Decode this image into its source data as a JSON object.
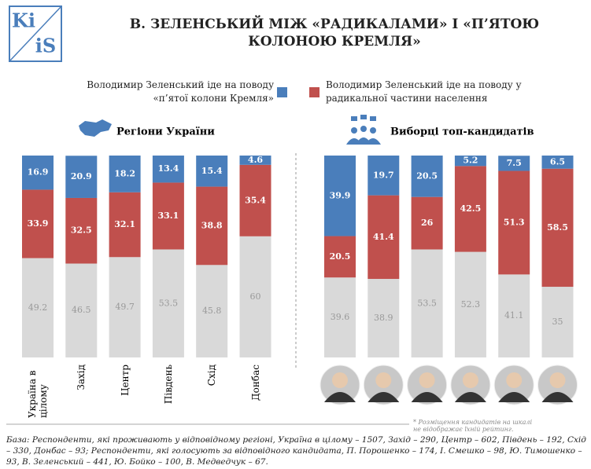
{
  "title": "В. ЗЕЛЕНСЬКИЙ МІЖ «РАДИКАЛАМИ» І «П’ЯТОЮ КОЛОНОЮ КРЕМЛЯ»",
  "logo": [
    "Ki",
    "iS"
  ],
  "chart_data": [
    {
      "type": "bar",
      "stacked": true,
      "title": "Регіони України",
      "categories": [
        "Україна в цілому",
        "Захід",
        "Центр",
        "Південь",
        "Схід",
        "Донбас"
      ],
      "ylim": [
        0,
        100
      ],
      "series": [
        {
          "color": "#d9d9d9",
          "values": [
            49.2,
            46.5,
            49.7,
            53.5,
            45.8,
            60
          ]
        },
        {
          "name": "Володимир Зеленський іде на поводу у радикальної частини населення",
          "color": "#c0504d",
          "values": [
            33.9,
            32.5,
            32.1,
            33.1,
            38.8,
            35.4
          ]
        },
        {
          "name": "Володимир Зеленський іде на поводу «п’ятої колони Кремля»",
          "color": "#4a7ebb",
          "values": [
            16.9,
            20.9,
            18.2,
            13.4,
            15.4,
            4.6
          ]
        }
      ]
    },
    {
      "type": "bar",
      "stacked": true,
      "title": "Виборці топ-кандидатів",
      "categories": [
        null,
        null,
        null,
        null,
        null,
        null
      ],
      "ylim": [
        0,
        100
      ],
      "series": [
        {
          "color": "#d9d9d9",
          "values": [
            39.6,
            38.9,
            53.5,
            52.3,
            41.1,
            35
          ]
        },
        {
          "color": "#c0504d",
          "values": [
            20.5,
            41.4,
            26,
            42.5,
            51.3,
            58.5
          ]
        },
        {
          "color": "#4a7ebb",
          "values": [
            39.9,
            19.7,
            20.5,
            5.2,
            7.5,
            6.5
          ]
        }
      ]
    }
  ],
  "note": "* Розміщення кандидатів на шкалі не відображає їхній рейтинг.",
  "base": "База: Респонденти, які проживають у відповідному регіоні, Україна в цілому – 1507, Захід – 290, Центр – 602, Південь – 192, Схід – 330, Донбас – 93; Респонденти, які голосують за відповідного кандидата, П. Порошенко – 174, І. Смешко – 98, Ю. Тимошенко – 93, В. Зеленський – 441, Ю. Бойко – 100, В. Медведчук – 67."
}
